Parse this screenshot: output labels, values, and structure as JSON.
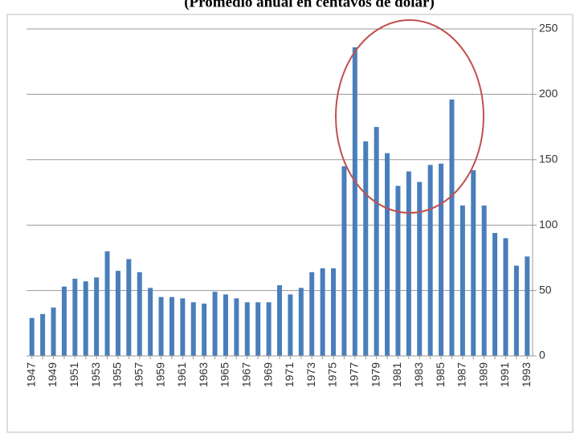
{
  "chart_data": {
    "type": "bar",
    "title": "(Promedio anual en centavos de dólar)",
    "categories": [
      "1947",
      null,
      "1949",
      null,
      "1951",
      null,
      "1953",
      null,
      "1955",
      null,
      "1957",
      null,
      "1959",
      null,
      "1961",
      null,
      "1963",
      null,
      "1965",
      null,
      "1967",
      null,
      "1969",
      null,
      "1971",
      null,
      "1973",
      null,
      "1975",
      null,
      "1977",
      null,
      "1979",
      null,
      "1981",
      null,
      "1983",
      null,
      "1985",
      null,
      "1987",
      null,
      "1989",
      null,
      "1991",
      null,
      "1993"
    ],
    "values": [
      29,
      32,
      37,
      53,
      59,
      57,
      60,
      80,
      65,
      74,
      64,
      52,
      45,
      45,
      44,
      41,
      40,
      49,
      47,
      44,
      41,
      41,
      41,
      54,
      47,
      52,
      64,
      67,
      67,
      145,
      236,
      164,
      175,
      155,
      130,
      141,
      133,
      146,
      147,
      196,
      115,
      142,
      115,
      94,
      90,
      69,
      76
    ],
    "color": "#4a7ebb",
    "ylim": [
      0,
      250
    ],
    "yticks": [
      0,
      50,
      100,
      150,
      200,
      250
    ],
    "grid": true
  }
}
